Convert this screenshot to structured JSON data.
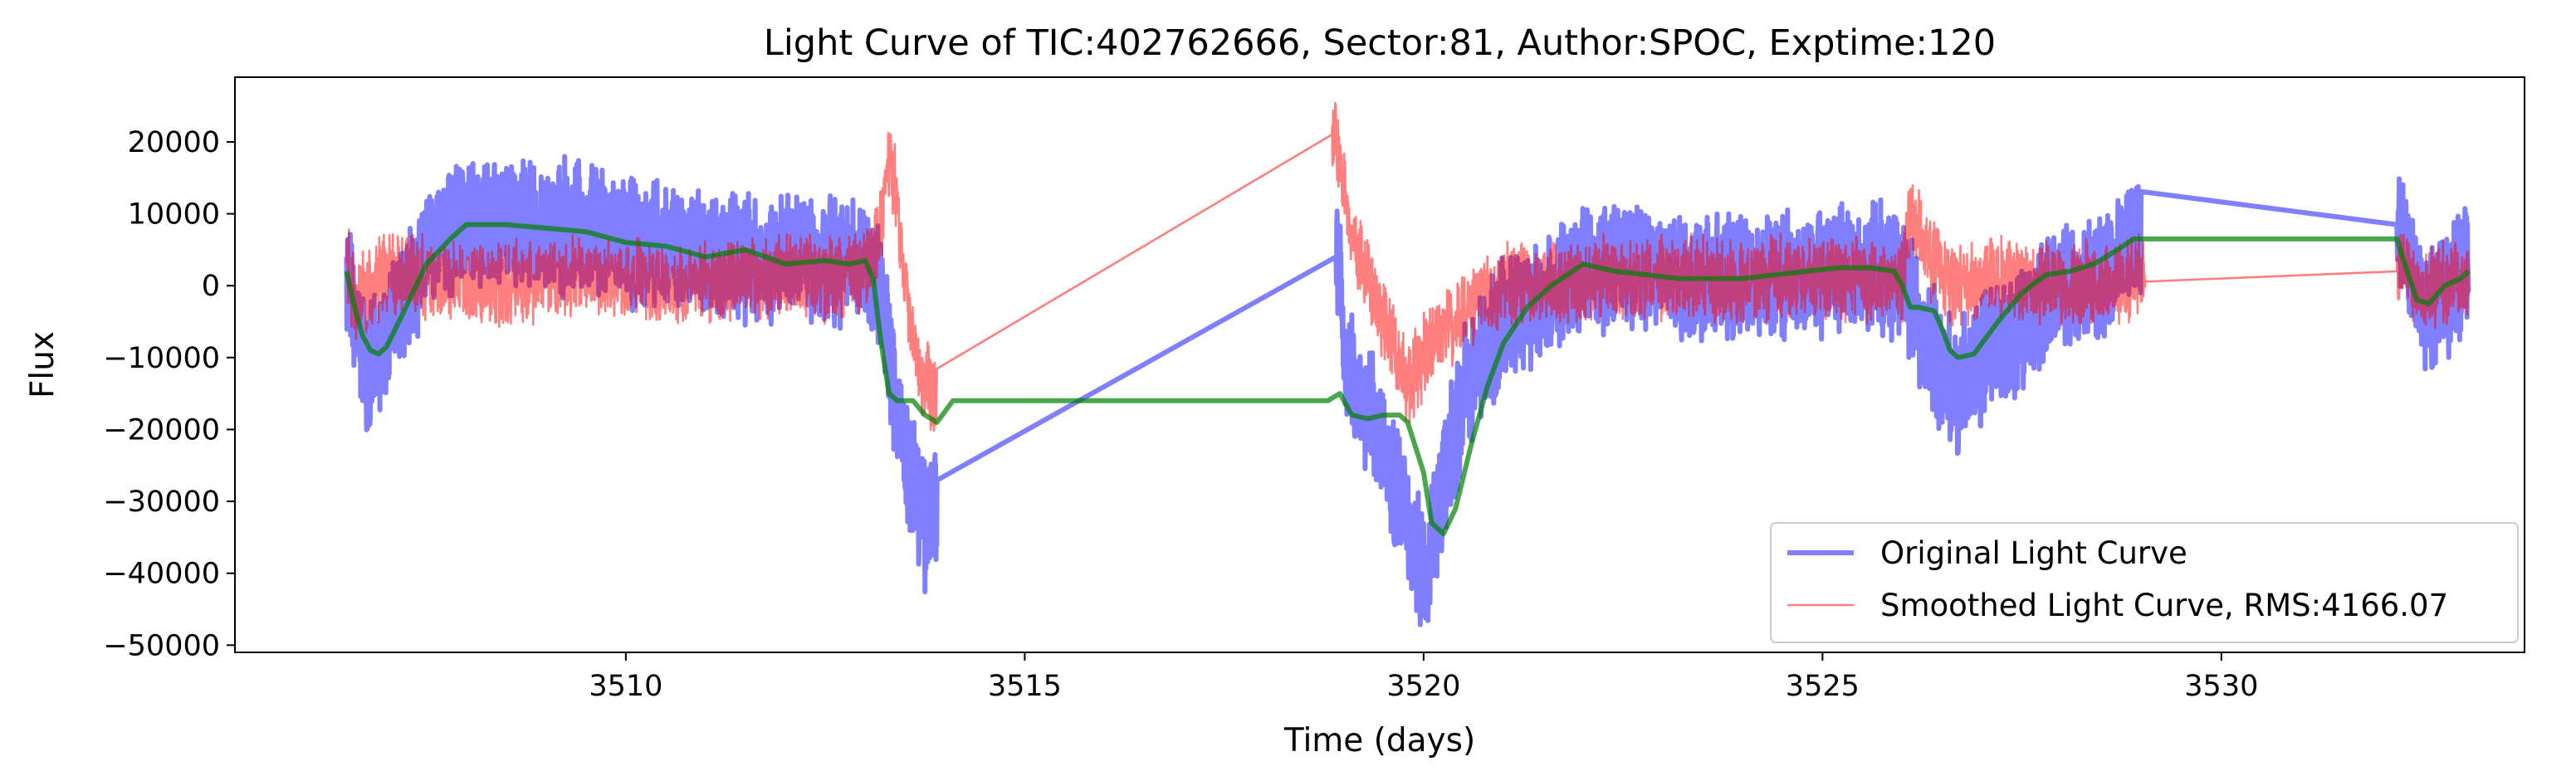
{
  "chart_data": {
    "type": "line",
    "title": "Light Curve of TIC:402762666, Sector:81, Author:SPOC, Exptime:120",
    "xlabel": "Time (days)",
    "ylabel": "Flux",
    "xlim": [
      3505.1,
      3533.8
    ],
    "ylim": [
      -51000,
      29000
    ],
    "x_ticks": [
      3510,
      3515,
      3520,
      3525,
      3530
    ],
    "y_ticks": [
      -50000,
      -40000,
      -30000,
      -20000,
      -10000,
      0,
      10000,
      20000
    ],
    "x_tick_labels": [
      "3510",
      "3515",
      "3520",
      "3525",
      "3530"
    ],
    "y_tick_labels": [
      "−50000",
      "−40000",
      "−30000",
      "−20000",
      "−10000",
      "0",
      "10000",
      "20000"
    ],
    "grid": false,
    "legend_position": "lower-right",
    "series": [
      {
        "name": "Original Light Curve",
        "color": "#0000ff",
        "opacity": 0.5,
        "x": [
          3506.5,
          3506.6,
          3506.8,
          3507.0,
          3507.5,
          3508.0,
          3508.5,
          3509.0,
          3509.5,
          3510.0,
          3510.5,
          3511.0,
          3511.5,
          3512.0,
          3512.5,
          3513.0,
          3513.2,
          3513.3,
          3513.45,
          3513.6,
          3513.75,
          3513.9,
          3518.9,
          3518.95,
          3519.0,
          3519.2,
          3519.4,
          3519.6,
          3519.8,
          3520.0,
          3520.1,
          3520.3,
          3520.5,
          3520.7,
          3521.0,
          3521.5,
          3522.0,
          3522.5,
          3523.0,
          3523.5,
          3524.0,
          3524.5,
          3525.0,
          3525.5,
          3526.0,
          3526.2,
          3526.5,
          3526.7,
          3527.0,
          3527.3,
          3527.6,
          3528.0,
          3528.5,
          3529.0,
          3532.2,
          3532.3,
          3532.5,
          3532.7,
          3532.9,
          3533.1
        ],
        "y": [
          4000,
          -6000,
          -12000,
          -8000,
          5000,
          9000,
          9000,
          8000,
          8000,
          6000,
          5000,
          5000,
          4000,
          4000,
          3500,
          3000,
          0,
          -10000,
          -20000,
          -28000,
          -33000,
          -30000,
          4000,
          3000,
          -10000,
          -14000,
          -20000,
          -26000,
          -32000,
          -40000,
          -35000,
          -25000,
          -15000,
          -10000,
          -5000,
          -2000,
          2000,
          3000,
          2000,
          1000,
          1000,
          2000,
          2000,
          2500,
          2000,
          -5000,
          -12000,
          -14000,
          -10000,
          -8000,
          -5000,
          0,
          1500,
          8000,
          8500,
          5000,
          -3000,
          -2000,
          0,
          2000
        ],
        "noise_amplitude": 10000
      },
      {
        "name": "Smoothed Light Curve, RMS:4166.07",
        "color": "#ff0000",
        "opacity": 0.5,
        "x": [
          3506.5,
          3506.6,
          3506.8,
          3507.0,
          3507.5,
          3508.0,
          3508.5,
          3509.0,
          3509.5,
          3510.0,
          3510.5,
          3511.0,
          3511.5,
          3512.0,
          3512.5,
          3513.0,
          3513.2,
          3513.3,
          3513.4,
          3513.5,
          3513.7,
          3513.9,
          3518.85,
          3518.95,
          3519.1,
          3519.2,
          3519.4,
          3519.6,
          3519.8,
          3520.0,
          3520.3,
          3520.7,
          3521.0,
          3521.5,
          3522.0,
          3522.5,
          3523.0,
          3523.5,
          3524.0,
          3524.5,
          3525.0,
          3525.5,
          3526.0,
          3526.1,
          3526.3,
          3526.6,
          3527.0,
          3527.5,
          3528.0,
          3528.5,
          3529.0,
          3529.05,
          3532.2,
          3532.3,
          3532.5,
          3532.7,
          3532.9,
          3533.1
        ],
        "y": [
          3000,
          -2000,
          0,
          2000,
          1000,
          0,
          0,
          1000,
          1500,
          1000,
          0,
          500,
          1000,
          1500,
          1000,
          2000,
          8000,
          18000,
          12000,
          0,
          -12000,
          -15000,
          21000,
          18000,
          6000,
          4000,
          -2000,
          -8000,
          -14000,
          -10000,
          -6000,
          -2000,
          0,
          500,
          1000,
          500,
          1000,
          1000,
          500,
          1000,
          500,
          1000,
          500,
          11000,
          5000,
          0,
          500,
          1000,
          0,
          500,
          1000,
          1500,
          2000,
          3000,
          -1000,
          0,
          1000,
          1000
        ],
        "noise_amplitude": 6500
      },
      {
        "name": "",
        "color": "#008000",
        "opacity": 0.7,
        "x": [
          3506.5,
          3506.6,
          3506.7,
          3506.8,
          3506.9,
          3507.0,
          3507.2,
          3507.5,
          3507.8,
          3508.0,
          3508.5,
          3509.0,
          3509.5,
          3510.0,
          3510.5,
          3511.0,
          3511.5,
          3512.0,
          3512.5,
          3512.8,
          3513.0,
          3513.1,
          3513.2,
          3513.3,
          3513.4,
          3513.6,
          3513.75,
          3513.9,
          3514.1,
          3518.8,
          3518.95,
          3519.1,
          3519.3,
          3519.5,
          3519.7,
          3519.8,
          3520.0,
          3520.1,
          3520.25,
          3520.4,
          3520.6,
          3520.8,
          3521.0,
          3521.3,
          3521.6,
          3522.0,
          3522.4,
          3522.8,
          3523.2,
          3523.6,
          3524.0,
          3524.4,
          3524.8,
          3525.2,
          3525.6,
          3525.9,
          3526.0,
          3526.1,
          3526.2,
          3526.4,
          3526.5,
          3526.6,
          3526.7,
          3526.9,
          3527.2,
          3527.5,
          3527.8,
          3528.1,
          3528.4,
          3528.7,
          3528.9,
          3529.0,
          3532.2,
          3532.3,
          3532.45,
          3532.6,
          3532.8,
          3533.0,
          3533.1
        ],
        "y": [
          2000,
          -3000,
          -7000,
          -9000,
          -9500,
          -8500,
          -4000,
          3000,
          6500,
          8500,
          8500,
          8000,
          7500,
          6000,
          5500,
          4000,
          5000,
          3000,
          3500,
          3000,
          3500,
          1000,
          -8000,
          -15000,
          -16000,
          -16000,
          -18000,
          -19000,
          -16000,
          -16000,
          -15000,
          -18000,
          -18500,
          -18000,
          -18000,
          -19000,
          -26000,
          -33000,
          -34500,
          -31000,
          -22000,
          -14000,
          -8000,
          -3000,
          0,
          3000,
          2000,
          1500,
          1000,
          1000,
          1000,
          1500,
          2000,
          2500,
          2500,
          2000,
          0,
          -3000,
          -3000,
          -3500,
          -6000,
          -9000,
          -10000,
          -9500,
          -5000,
          -1000,
          1500,
          2000,
          3000,
          5000,
          6500,
          6500,
          6500,
          3000,
          -2000,
          -2500,
          0,
          1000,
          2000
        ]
      }
    ]
  }
}
